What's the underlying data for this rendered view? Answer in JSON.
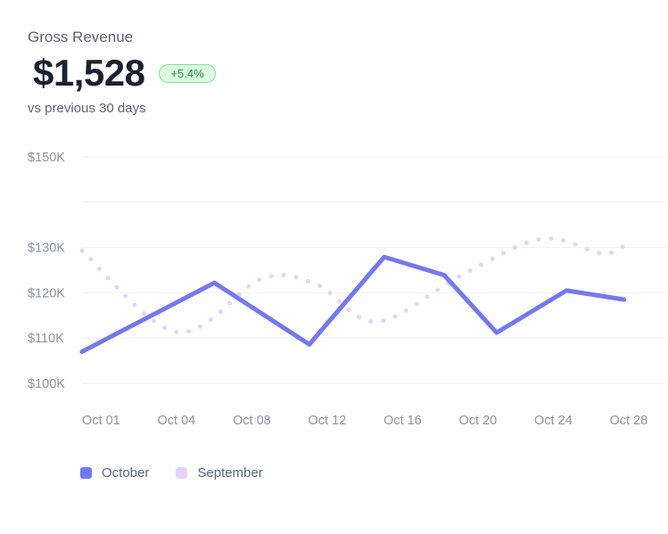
{
  "header": {
    "title": "Gross Revenue",
    "value": "$1,528",
    "change": "+5.4%",
    "subtitle": "vs previous 30 days"
  },
  "colors": {
    "october": "#7478f0",
    "september": "#e6d3fb",
    "grid": "#eef0f8",
    "axis_text": "#8a93a6",
    "badge_bg": "#dcfce0",
    "badge_text": "#1f8a3a"
  },
  "chart_data": {
    "type": "line",
    "title": "",
    "xlabel": "",
    "ylabel": "",
    "ylim": [
      100,
      150
    ],
    "y_ticks": [
      100,
      110,
      120,
      130,
      150
    ],
    "y_tick_labels": [
      "$100K",
      "$110K",
      "$120K",
      "$130K",
      "$150K"
    ],
    "x_tick_labels": [
      "Oct 01",
      "Oct 04",
      "Oct 08",
      "Oct 12",
      "Oct 16",
      "Oct 20",
      "Oct 24",
      "Oct 28"
    ],
    "grid": true,
    "legend_position": "bottom-left",
    "series": [
      {
        "name": "October",
        "style": "solid",
        "points": [
          [
            1,
            107
          ],
          [
            6.3,
            122.2
          ],
          [
            10.1,
            108.6
          ],
          [
            13.1,
            127.9
          ],
          [
            15.5,
            123.9
          ],
          [
            17.6,
            111.2
          ],
          [
            20.4,
            120.5
          ],
          [
            22.7,
            118.5
          ]
        ]
      },
      {
        "name": "September",
        "style": "dotted",
        "points": [
          [
            1,
            129.3
          ],
          [
            4.8,
            111.3
          ],
          [
            8.2,
            123.1
          ],
          [
            10.4,
            121.8
          ],
          [
            12.8,
            113.6
          ],
          [
            16.2,
            123.9
          ],
          [
            19.4,
            131.9
          ],
          [
            21.8,
            128.7
          ],
          [
            22.7,
            130.3
          ]
        ]
      }
    ]
  }
}
